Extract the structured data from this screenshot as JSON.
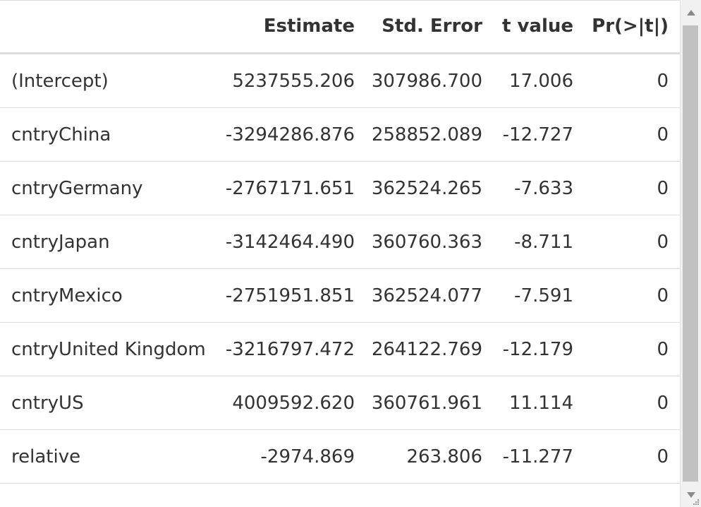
{
  "table": {
    "headers": [
      "",
      "Estimate",
      "Std. Error",
      "t value",
      "Pr(>|t|)"
    ],
    "rows": [
      {
        "term": "(Intercept)",
        "estimate": "5237555.206",
        "std_error": "307986.700",
        "t_value": "17.006",
        "p_value": "0"
      },
      {
        "term": "cntryChina",
        "estimate": "-3294286.876",
        "std_error": "258852.089",
        "t_value": "-12.727",
        "p_value": "0"
      },
      {
        "term": "cntryGermany",
        "estimate": "-2767171.651",
        "std_error": "362524.265",
        "t_value": "-7.633",
        "p_value": "0"
      },
      {
        "term": "cntryJapan",
        "estimate": "-3142464.490",
        "std_error": "360760.363",
        "t_value": "-8.711",
        "p_value": "0"
      },
      {
        "term": "cntryMexico",
        "estimate": "-2751951.851",
        "std_error": "362524.077",
        "t_value": "-7.591",
        "p_value": "0"
      },
      {
        "term": "cntryUnited Kingdom",
        "estimate": "-3216797.472",
        "std_error": "264122.769",
        "t_value": "-12.179",
        "p_value": "0"
      },
      {
        "term": "cntryUS",
        "estimate": "4009592.620",
        "std_error": "360761.961",
        "t_value": "11.114",
        "p_value": "0"
      },
      {
        "term": "relative",
        "estimate": "-2974.869",
        "std_error": "263.806",
        "t_value": "-11.277",
        "p_value": "0"
      }
    ]
  },
  "scrollbar": {
    "up_icon": "triangle-up-icon",
    "down_icon": "triangle-down-icon",
    "resize_icon": "resize-grip-icon"
  }
}
